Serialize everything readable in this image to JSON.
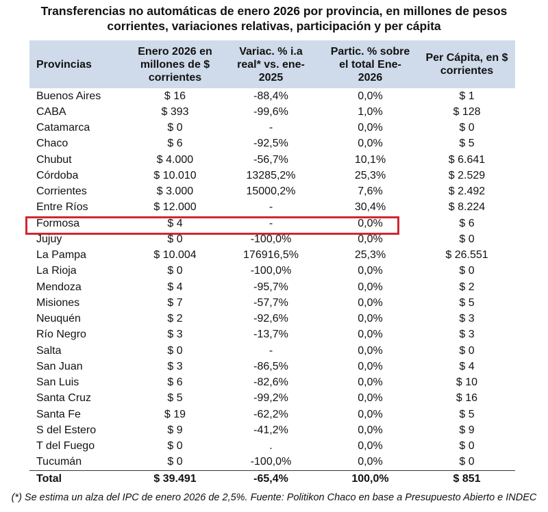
{
  "title": {
    "line1": "Transferencias no automáticas de enero 2026 por provincia, en millones de pesos",
    "line2": "corrientes, variaciones relativas, participación y per cápita"
  },
  "headers": {
    "provincias": "Provincias",
    "enero_l1": "Enero 2026 en",
    "enero_l2": "millones de $",
    "enero_l3": "corrientes",
    "variac_l1": "Variac. % i.a",
    "variac_l2": "real* vs. ene-",
    "variac_l3": "2025",
    "partic_l1": "Partic. % sobre",
    "partic_l2": "el total Ene-",
    "partic_l3": "2026",
    "percap_l1": "Per Cápita, en $",
    "percap_l2": "corrientes"
  },
  "rows": [
    [
      "Buenos Aires",
      "$ 16",
      "-88,4%",
      "0,0%",
      "$ 1"
    ],
    [
      "CABA",
      "$ 393",
      "-99,6%",
      "1,0%",
      "$ 128"
    ],
    [
      "Catamarca",
      "$ 0",
      "-",
      "0,0%",
      "$ 0"
    ],
    [
      "Chaco",
      "$ 6",
      "-92,5%",
      "0,0%",
      "$ 5"
    ],
    [
      "Chubut",
      "$ 4.000",
      "-56,7%",
      "10,1%",
      "$ 6.641"
    ],
    [
      "Córdoba",
      "$ 10.010",
      "13285,2%",
      "25,3%",
      "$ 2.529"
    ],
    [
      "Corrientes",
      "$ 3.000",
      "15000,2%",
      "7,6%",
      "$ 2.492"
    ],
    [
      "Entre Ríos",
      "$ 12.000",
      "-",
      "30,4%",
      "$ 8.224"
    ],
    [
      "Formosa",
      "$ 4",
      "-",
      "0,0%",
      "$ 6"
    ],
    [
      "Jujuy",
      "$ 0",
      "-100,0%",
      "0,0%",
      "$ 0"
    ],
    [
      "La Pampa",
      "$ 10.004",
      "176916,5%",
      "25,3%",
      "$ 26.551"
    ],
    [
      "La Rioja",
      "$ 0",
      "-100,0%",
      "0,0%",
      "$ 0"
    ],
    [
      "Mendoza",
      "$ 4",
      "-95,7%",
      "0,0%",
      "$ 2"
    ],
    [
      "Misiones",
      "$ 7",
      "-57,7%",
      "0,0%",
      "$ 5"
    ],
    [
      "Neuquén",
      "$ 2",
      "-92,6%",
      "0,0%",
      "$ 3"
    ],
    [
      "Río Negro",
      "$ 3",
      "-13,7%",
      "0,0%",
      "$ 3"
    ],
    [
      "Salta",
      "$ 0",
      "-",
      "0,0%",
      "$ 0"
    ],
    [
      "San Juan",
      "$ 3",
      "-86,5%",
      "0,0%",
      "$ 4"
    ],
    [
      "San Luis",
      "$ 6",
      "-82,6%",
      "0,0%",
      "$ 10"
    ],
    [
      "Santa Cruz",
      "$ 5",
      "-99,2%",
      "0,0%",
      "$ 16"
    ],
    [
      "Santa Fe",
      "$ 19",
      "-62,2%",
      "0,0%",
      "$ 5"
    ],
    [
      "S del Estero",
      "$ 9",
      "-41,2%",
      "0,0%",
      "$ 9"
    ],
    [
      "T del Fuego",
      "$ 0",
      ".",
      "0,0%",
      "$ 0"
    ],
    [
      "Tucumán",
      "$ 0",
      "-100,0%",
      "0,0%",
      "$ 0"
    ]
  ],
  "total": [
    "Total",
    "$ 39.491",
    "-65,4%",
    "100,0%",
    "$ 851"
  ],
  "highlighted_row": "Formosa",
  "highlight_color": "#d0272f",
  "header_bg": "#cfdbea",
  "footnote": "(*) Se estima un alza del IPC de enero 2026 de 2,5%. Fuente: Politikon Chaco en base a Presupuesto Abierto e INDEC"
}
